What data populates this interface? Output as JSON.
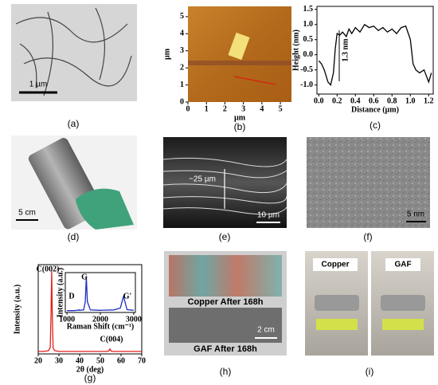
{
  "panels": {
    "a": {
      "label": "(a)",
      "scale": "1 µm"
    },
    "d": {
      "label": "(d)",
      "scale": "5 cm"
    },
    "e": {
      "label": "(e)",
      "thickness": "~25 µm",
      "scale": "10 µm"
    },
    "f": {
      "label": "(f)",
      "scale": "5 nm"
    },
    "h": {
      "label": "(h)",
      "top": "Copper  After 168h",
      "bottom": "GAF After 168h",
      "scale": "2 cm"
    },
    "i": {
      "label": "(i)",
      "left": "Copper",
      "right": "GAF"
    }
  },
  "chart_data": [
    {
      "type": "image",
      "label": "(b)",
      "xlabel": "µm",
      "ylabel": "µm",
      "xlim": [
        0,
        5.6
      ],
      "ylim": [
        0,
        5.6
      ],
      "xticks": [
        0,
        1,
        2,
        3,
        4,
        5
      ],
      "yticks": [
        0,
        1,
        2,
        3,
        4,
        5
      ]
    },
    {
      "type": "line",
      "label": "(c)",
      "xlabel": "Distance (µm)",
      "ylabel": "Height (nm)",
      "annotation": "1.3 nm",
      "color": "#000000",
      "x": [
        0,
        0.03,
        0.06,
        0.1,
        0.13,
        0.16,
        0.18,
        0.2,
        0.23,
        0.26,
        0.3,
        0.33,
        0.36,
        0.4,
        0.45,
        0.5,
        0.55,
        0.6,
        0.65,
        0.7,
        0.75,
        0.8,
        0.85,
        0.9,
        0.95,
        1.0,
        1.03,
        1.06,
        1.1,
        1.15,
        1.2,
        1.23
      ],
      "values": [
        -0.2,
        -0.3,
        -0.5,
        -0.9,
        -1.0,
        -0.6,
        0.2,
        0.7,
        0.65,
        0.75,
        0.6,
        0.85,
        0.7,
        0.9,
        0.75,
        1.0,
        0.9,
        0.95,
        0.8,
        0.9,
        0.75,
        0.85,
        0.7,
        0.9,
        0.95,
        0.5,
        -0.3,
        -0.5,
        -0.6,
        -0.5,
        -0.9,
        -0.6
      ],
      "xlim": [
        -0.02,
        1.25
      ],
      "ylim": [
        -1.3,
        1.6
      ],
      "xticks": [
        {
          "value": 0,
          "label": "0.0"
        },
        0.2,
        0.4,
        0.6,
        0.8,
        {
          "value": 1,
          "label": "1.0"
        },
        1.2
      ],
      "yticks": [
        {
          "value": -1,
          "label": "-1.0"
        },
        -0.5,
        {
          "value": 0,
          "label": "0.0"
        },
        0.5,
        {
          "value": 1,
          "label": "1.0"
        },
        1.5
      ]
    },
    {
      "type": "line",
      "label": "(g)",
      "xlabel": "2θ (deg)",
      "ylabel": "Intensity (a.u.)",
      "annotations": [
        "C(002)",
        "C(004)"
      ],
      "color": "#e0201b",
      "x": [
        20,
        22,
        24,
        25,
        25.8,
        26.2,
        26.5,
        26.8,
        27.2,
        28,
        30,
        35,
        40,
        45,
        50,
        53,
        54,
        54.6,
        55.2,
        56,
        60,
        65,
        70
      ],
      "values": [
        0.03,
        0.03,
        0.035,
        0.04,
        0.08,
        0.5,
        1.0,
        0.45,
        0.07,
        0.04,
        0.03,
        0.03,
        0.03,
        0.03,
        0.03,
        0.03,
        0.035,
        0.06,
        0.035,
        0.03,
        0.03,
        0.03,
        0.03
      ],
      "xlim": [
        20,
        70
      ],
      "ylim": [
        0,
        1.08
      ],
      "xticks": [
        20,
        30,
        40,
        50,
        60,
        70
      ]
    },
    {
      "type": "line",
      "xlabel": "Raman Shift (cm⁻¹)",
      "ylabel": "Intensity (a.u.)",
      "annotations": [
        "D",
        "G",
        "G'"
      ],
      "color": "#1f2fbf",
      "x": [
        1000,
        1200,
        1330,
        1350,
        1370,
        1500,
        1550,
        1580,
        1610,
        1700,
        2000,
        2400,
        2600,
        2680,
        2700,
        2720,
        2800,
        3000
      ],
      "values": [
        0.05,
        0.05,
        0.06,
        0.08,
        0.06,
        0.07,
        0.3,
        1.0,
        0.3,
        0.07,
        0.06,
        0.07,
        0.12,
        0.4,
        0.45,
        0.35,
        0.08,
        0.06
      ],
      "xlim": [
        950,
        3050
      ],
      "ylim": [
        0,
        1.1
      ],
      "xticks": [
        1000,
        2000,
        3000
      ]
    }
  ]
}
